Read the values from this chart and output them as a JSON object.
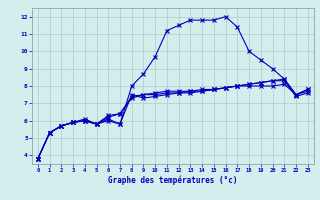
{
  "xlabel": "Graphe des températures (°c)",
  "background_color": "#d4eeee",
  "grid_color": "#aacccc",
  "line_color": "#0000bb",
  "hours": [
    0,
    1,
    2,
    3,
    4,
    5,
    6,
    7,
    8,
    9,
    10,
    11,
    12,
    13,
    14,
    15,
    16,
    17,
    18,
    19,
    20,
    21,
    22,
    23
  ],
  "curve1": [
    3.8,
    5.3,
    5.7,
    5.9,
    6.0,
    5.8,
    6.0,
    5.8,
    8.0,
    8.7,
    9.7,
    11.2,
    11.5,
    11.8,
    11.8,
    11.8,
    12.0,
    11.4,
    10.0,
    9.5,
    9.0,
    8.4,
    7.5,
    7.8
  ],
  "curve2": [
    3.8,
    5.3,
    5.7,
    5.9,
    6.0,
    5.8,
    6.1,
    5.8,
    7.5,
    7.3,
    7.4,
    7.5,
    7.6,
    7.6,
    7.7,
    7.8,
    7.9,
    8.0,
    8.1,
    8.2,
    8.3,
    8.4,
    7.5,
    7.8
  ],
  "curve3": [
    3.8,
    5.3,
    5.7,
    5.9,
    6.0,
    5.8,
    6.2,
    6.4,
    7.3,
    7.5,
    7.6,
    7.7,
    7.7,
    7.7,
    7.8,
    7.8,
    7.9,
    8.0,
    8.0,
    8.0,
    8.0,
    8.1,
    7.5,
    7.7
  ],
  "curve4": [
    3.8,
    5.3,
    5.7,
    5.9,
    6.1,
    5.8,
    6.3,
    6.4,
    7.4,
    7.5,
    7.5,
    7.6,
    7.6,
    7.7,
    7.7,
    7.8,
    7.9,
    8.0,
    8.1,
    8.2,
    8.3,
    8.3,
    7.4,
    7.6
  ],
  "ylim": [
    3.5,
    12.5
  ],
  "yticks": [
    4,
    5,
    6,
    7,
    8,
    9,
    10,
    11,
    12
  ],
  "xlim": [
    -0.5,
    23.5
  ]
}
